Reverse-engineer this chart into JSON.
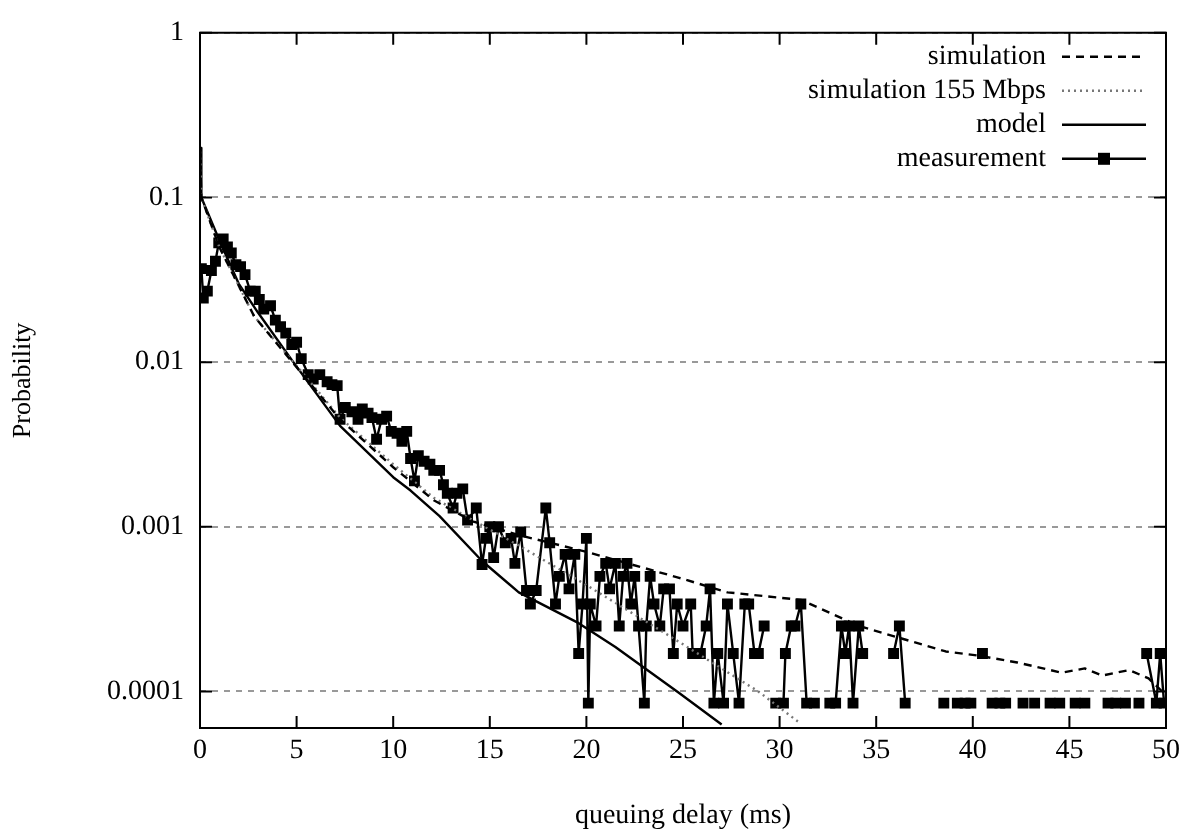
{
  "chart_data": {
    "type": "line",
    "xlabel": "queuing delay (ms)",
    "ylabel": "Probability",
    "log": "y",
    "grid": "y",
    "legend": "top right",
    "xlim": [
      0,
      50
    ],
    "xticks": [
      0,
      5,
      10,
      15,
      20,
      25,
      30,
      35,
      40,
      45,
      50
    ],
    "ylim": [
      6e-05,
      1
    ],
    "yticks": [
      0.0001,
      0.001,
      0.01,
      0.1,
      1
    ],
    "series": [
      {
        "name": "simulation",
        "color": "#000000",
        "line_style": "dashed",
        "marker": "none",
        "x": [
          0,
          0.07,
          1,
          2.8,
          5,
          7.25,
          10,
          12.1,
          14.1,
          16.5,
          19.9,
          24.8,
          27.3,
          31.1,
          34.1,
          38.6,
          40.3,
          42.3,
          44.6,
          45.8,
          46.7,
          48.1,
          49.1,
          49.8
        ],
        "values": [
          0.19,
          0.1,
          0.05,
          0.019,
          0.0093,
          0.0045,
          0.0023,
          0.00145,
          0.00108,
          0.00089,
          0.00071,
          0.00049,
          0.0004,
          0.00036,
          0.00025,
          0.000175,
          0.000165,
          0.00015,
          0.00013,
          0.000138,
          0.000125,
          0.000135,
          0.00012,
          0.0001
        ]
      },
      {
        "name": "simulation 155 Mbps",
        "color": "#777777",
        "line_style": "dotted",
        "marker": "none",
        "x": [
          0,
          0.07,
          1,
          2.8,
          5,
          7.25,
          10,
          12.1,
          14.1,
          16.5,
          19.9,
          24.8,
          28.9,
          31
        ],
        "values": [
          0.19,
          0.1,
          0.05,
          0.019,
          0.0095,
          0.0046,
          0.0024,
          0.0015,
          0.0011,
          0.00077,
          0.00045,
          0.0002,
          0.0001,
          6.5e-05
        ]
      },
      {
        "name": "model",
        "color": "#000000",
        "line_style": "solid",
        "marker": "none",
        "x": [
          0,
          0.07,
          1,
          2,
          3,
          4.7,
          7.25,
          10,
          10.9,
          12.4,
          14.6,
          16.5,
          19.6,
          21.5,
          24.8,
          27
        ],
        "values": [
          0.2,
          0.1,
          0.055,
          0.03,
          0.02,
          0.0105,
          0.0041,
          0.002,
          0.00166,
          0.00116,
          0.00062,
          0.0004,
          0.00026,
          0.000186,
          9.8e-05,
          6.3e-05
        ]
      },
      {
        "name": "measurement",
        "color": "#000000",
        "line_style": "solid",
        "marker": "square",
        "x": [
          0.07,
          0.17,
          0.38,
          0.59,
          0.8,
          0.97,
          1.2,
          1.42,
          1.62,
          1.86,
          2.1,
          2.33,
          2.6,
          2.86,
          3.07,
          3.3,
          3.65,
          3.9,
          4.17,
          4.44,
          4.75,
          5.0,
          5.24,
          5.6,
          5.86,
          6.2,
          6.58,
          6.83,
          7.1,
          7.25,
          7.52,
          7.86,
          8.18,
          8.4,
          8.7,
          8.9,
          9.14,
          9.4,
          9.66,
          9.9,
          10.2,
          10.45,
          10.7,
          10.9,
          11.1,
          11.3,
          11.6,
          11.9,
          12.1,
          12.4,
          12.6,
          12.8,
          13.1,
          13.3,
          13.6,
          13.85,
          14.3,
          14.6,
          14.8,
          15.0,
          15.2,
          15.45,
          15.8,
          16.1,
          16.3,
          16.6,
          16.9,
          17.1,
          17.4,
          17.9,
          18.1,
          18.4,
          18.6,
          18.9,
          19.1,
          19.4,
          19.6,
          19.8,
          20.0,
          20.1,
          20.2,
          20.5,
          20.7,
          21.0,
          21.2,
          21.5,
          21.7,
          21.9,
          22.1,
          22.3,
          22.5,
          22.7,
          23.0,
          23.1,
          23.3,
          23.5,
          23.8,
          24.0,
          24.3,
          24.5,
          24.7,
          25.0,
          25.4,
          25.5,
          25.9,
          26.2,
          26.4,
          26.6,
          26.8,
          27.1,
          27.3,
          27.6,
          27.9,
          28.2,
          28.4,
          28.7,
          28.9,
          29.2,
          29.5,
          29.8,
          30.0,
          30.2,
          30.3,
          30.6,
          30.8,
          31.1,
          31.4,
          31.8,
          32.2,
          32.6,
          32.9,
          33.2,
          33.4,
          33.6,
          33.8,
          34.1,
          34.3,
          35.0,
          35.9,
          36.2,
          36.5,
          37.5,
          38.5,
          38.9,
          39.2,
          39.4,
          39.6,
          39.75,
          39.9,
          40.2,
          40.5,
          40.8,
          41.0,
          41.2,
          41.4,
          41.55,
          41.7,
          42.2,
          42.6,
          42.9,
          43.2,
          43.6,
          44.0,
          44.25,
          44.5,
          45.0,
          45.3,
          45.55,
          45.8,
          46.5,
          47.0,
          47.2,
          47.4,
          47.65,
          47.9,
          48.3,
          48.6,
          48.8,
          49.0,
          49.5,
          49.7,
          49.9
        ],
        "values": [
          0.037,
          0.0245,
          0.027,
          0.036,
          0.041,
          0.053,
          0.056,
          0.05,
          0.046,
          0.039,
          0.038,
          0.034,
          0.027,
          0.027,
          0.024,
          0.021,
          0.022,
          0.018,
          0.0164,
          0.015,
          0.0128,
          0.0132,
          0.0105,
          0.0084,
          0.0079,
          0.0084,
          0.0076,
          0.0073,
          0.0072,
          0.0045,
          0.0053,
          0.005,
          0.0045,
          0.0052,
          0.0049,
          0.0046,
          0.0034,
          0.0045,
          0.0047,
          0.0038,
          0.0037,
          0.0033,
          0.0038,
          0.0026,
          0.0019,
          0.0027,
          0.0025,
          0.0024,
          0.0022,
          0.0022,
          0.0018,
          0.0016,
          0.0013,
          0.0016,
          0.0017,
          0.0011,
          0.0013,
          0.00059,
          0.00085,
          0.001,
          0.00065,
          0.001,
          0.0008,
          0.00085,
          0.0006,
          0.00093,
          0.00041,
          0.00034,
          0.00041,
          0.0013,
          0.0008,
          0.00034,
          0.0005,
          0.00068,
          0.00042,
          0.00068,
          0.00017,
          0.00034,
          0.00085,
          8.5e-05,
          0.00034,
          0.00025,
          0.0005,
          0.0006,
          0.00042,
          0.0006,
          0.00025,
          0.0005,
          0.0006,
          0.00034,
          0.0005,
          0.00025,
          8.5e-05,
          0.00025,
          0.0005,
          0.00034,
          0.00025,
          0.00042,
          0.00042,
          0.00017,
          0.00034,
          0.00025,
          0.00034,
          0.00017,
          0.00017,
          0.00025,
          0.00042,
          8.5e-05,
          0.00017,
          8.5e-05,
          0.00034,
          0.00017,
          8.5e-05,
          0.00034,
          0.00034,
          0.00017,
          0.00017,
          0.00025,
          null,
          8.5e-05,
          null,
          8.5e-05,
          0.00017,
          0.00025,
          0.00025,
          0.00034,
          8.5e-05,
          8.5e-05,
          null,
          8.5e-05,
          8.5e-05,
          0.00025,
          0.00017,
          0.00025,
          8.5e-05,
          0.00025,
          0.00017,
          null,
          0.00017,
          0.00025,
          8.5e-05,
          null,
          8.5e-05,
          null,
          8.5e-05,
          null,
          8.5e-05,
          null,
          8.5e-05,
          null,
          0.00017,
          null,
          8.5e-05,
          null,
          8.5e-05,
          null,
          8.5e-05,
          null,
          8.5e-05,
          null,
          8.5e-05,
          null,
          8.5e-05,
          null,
          8.5e-05,
          null,
          8.5e-05,
          null,
          8.5e-05,
          null,
          8.5e-05,
          null,
          8.5e-05,
          null,
          8.5e-05,
          null,
          8.5e-05,
          null,
          0.00017,
          8.5e-05,
          0.00017,
          8.5e-05
        ]
      }
    ]
  }
}
